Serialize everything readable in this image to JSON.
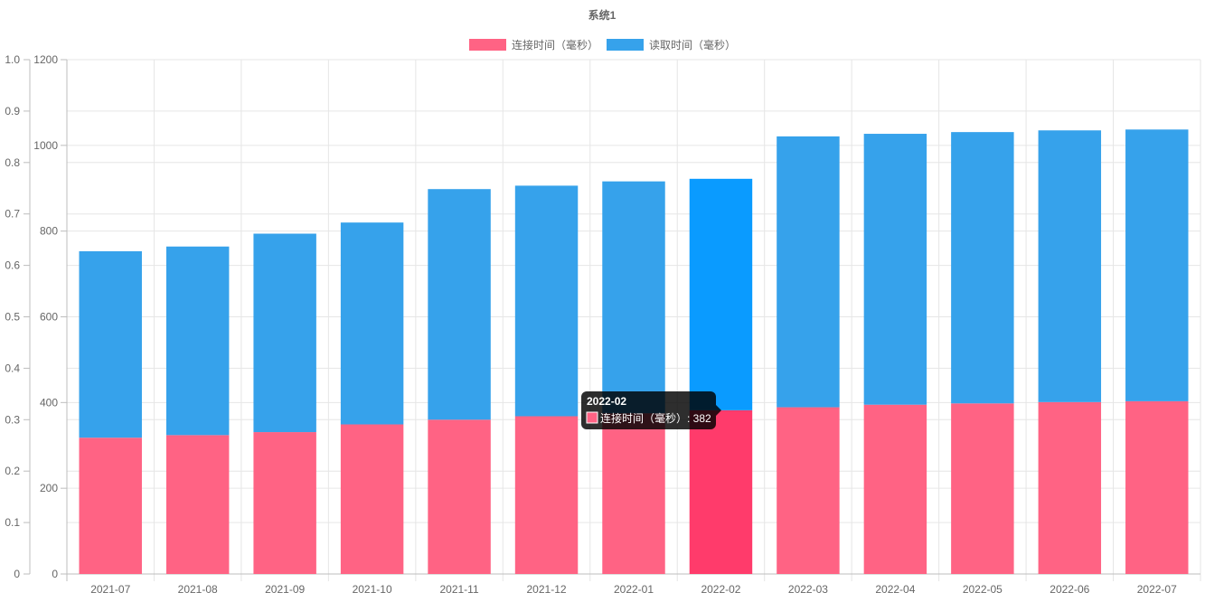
{
  "chart_data": {
    "type": "bar",
    "stacked": true,
    "title": "系统1",
    "categories": [
      "2021-07",
      "2021-08",
      "2021-09",
      "2021-10",
      "2021-11",
      "2021-12",
      "2022-01",
      "2022-02",
      "2022-03",
      "2022-04",
      "2022-05",
      "2022-06",
      "2022-07"
    ],
    "series": [
      {
        "name": "连接时间（毫秒）",
        "color": "#ff6384",
        "values": [
          318,
          324,
          331,
          349,
          360,
          368,
          375,
          382,
          389,
          395,
          398,
          401,
          403
        ]
      },
      {
        "name": "读取时间（毫秒）",
        "color": "#36a2eb",
        "values": [
          435,
          440,
          463,
          471,
          538,
          538,
          541,
          540,
          632,
          632,
          633,
          634,
          634
        ]
      }
    ],
    "y_axis_left": {
      "min": 0,
      "max": 1.0,
      "ticks": [
        "0",
        "0.1",
        "0.2",
        "0.3",
        "0.4",
        "0.5",
        "0.6",
        "0.7",
        "0.8",
        "0.9",
        "1.0"
      ]
    },
    "y_axis_right": {
      "min": 0,
      "max": 1200,
      "ticks": [
        "0",
        "200",
        "400",
        "600",
        "800",
        "1000",
        "1200"
      ]
    },
    "legend_position": "top",
    "highlighted_category": "2022-02",
    "highlight_colors": {
      "connect": "#ff3b6b",
      "read": "#0a9bff"
    },
    "tooltip": {
      "title": "2022-02",
      "label": "连接时间（毫秒）: 382",
      "swatch_color": "#ff6384"
    }
  }
}
